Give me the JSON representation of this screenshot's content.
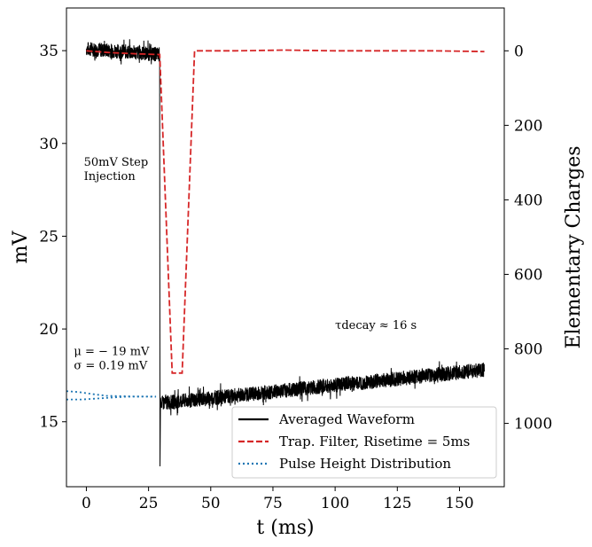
{
  "chart_data": {
    "type": "line",
    "xlabel": "t (ms)",
    "ylabel_left": "mV",
    "ylabel_right": "Elementary Charges",
    "xlim": [
      -8,
      168
    ],
    "ylim_left": [
      11.5,
      37.3
    ],
    "ylim_right": [
      1170,
      -115
    ],
    "x_ticks": [
      0,
      25,
      50,
      75,
      100,
      125,
      150
    ],
    "y_ticks_left": [
      15,
      20,
      25,
      30,
      35
    ],
    "y_ticks_right": [
      0,
      200,
      400,
      600,
      800,
      1000
    ],
    "colors": {
      "averaged": "#000000",
      "trap": "#d62728",
      "pulse": "#1f77b4"
    },
    "series": [
      {
        "name": "Averaged Waveform",
        "axis": "left",
        "style": "solid",
        "noise_mv": 0.4,
        "points": [
          [
            0,
            35.1
          ],
          [
            29.5,
            34.8
          ],
          [
            29.6,
            12.6
          ],
          [
            29.8,
            16.3
          ],
          [
            30.2,
            16.0
          ],
          [
            160,
            17.8
          ]
        ]
      },
      {
        "name": "Trap. Filter, Risetime = 5ms",
        "axis": "right",
        "style": "dashed",
        "x": [
          0,
          10,
          20,
          29.5,
          34.5,
          38.5,
          43.5,
          60,
          80,
          100,
          120,
          140,
          160
        ],
        "y": [
          0,
          5,
          8,
          10,
          865,
          865,
          0,
          0,
          -2,
          0,
          0,
          0,
          2
        ]
      },
      {
        "name": "Pulse Height Distribution",
        "axis": "left",
        "style": "dotted",
        "curves": [
          {
            "x": [
              -8,
              -3,
              2,
              8,
              14,
              20,
              28
            ],
            "y": [
              16.65,
              16.6,
              16.5,
              16.4,
              16.38,
              16.36,
              16.35
            ]
          },
          {
            "x": [
              -8,
              -2,
              4,
              10,
              16,
              22,
              28
            ],
            "y": [
              16.2,
              16.2,
              16.25,
              16.3,
              16.35,
              16.36,
              16.36
            ]
          }
        ]
      }
    ],
    "annotations": [
      {
        "lines": [
          "50mV Step",
          "Injection"
        ],
        "x": -1,
        "y": 28.8
      },
      {
        "lines": [
          "μ = − 19 mV",
          "σ = 0.19 mV"
        ],
        "x": -5,
        "y": 18.6
      },
      {
        "lines": [
          "τdecay ≈ 16 s"
        ],
        "x": 100,
        "y": 20.0
      }
    ],
    "legend": {
      "position": "lower-right",
      "entries": [
        "Averaged Waveform",
        "Trap. Filter, Risetime = 5ms",
        "Pulse Height Distribution"
      ]
    }
  }
}
